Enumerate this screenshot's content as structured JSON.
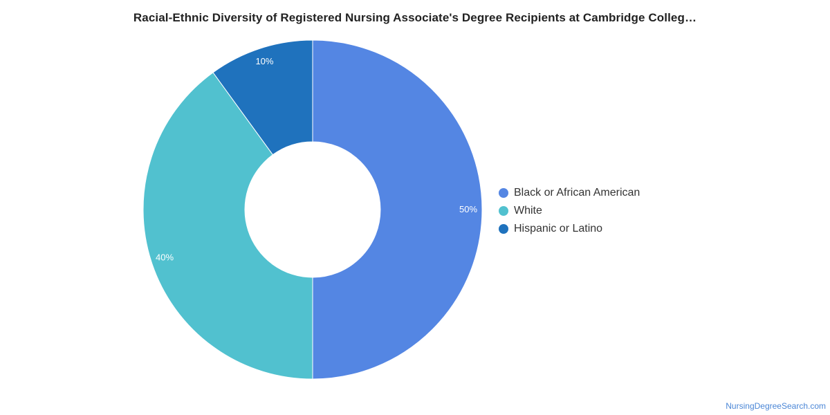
{
  "chart_data": {
    "type": "pie",
    "title": "Racial-Ethnic Diversity of Registered Nursing Associate's Degree Recipients at Cambridge Colleg…",
    "slices": [
      {
        "label": "Black or African American",
        "value": 50,
        "display": "50%",
        "color": "#5486e3"
      },
      {
        "label": "White",
        "value": 40,
        "display": "40%",
        "color": "#51c1cf"
      },
      {
        "label": "Hispanic or Latino",
        "value": 10,
        "display": "10%",
        "color": "#1f72bd"
      }
    ],
    "legend_position": "right",
    "donut": true
  },
  "footer": {
    "credit": "NursingDegreeSearch.com"
  }
}
